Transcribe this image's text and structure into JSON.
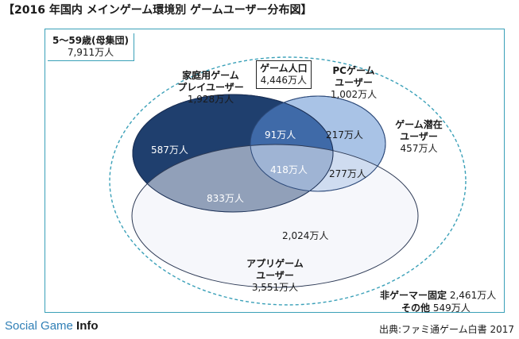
{
  "title": "【2016 年国内 メインゲーム環境別 ゲームユーザー分布図】",
  "population": {
    "label": "5～59歳(母集団)",
    "value": "7,911万人"
  },
  "game_population": {
    "label": "ゲーム人口",
    "value": "4,446万人"
  },
  "sets": {
    "console": {
      "label_line1": "家庭用ゲーム",
      "label_line2": "プレイユーザー",
      "value": "1,928万人",
      "color": "#1f3f6e"
    },
    "pc": {
      "label_line1": "PCゲーム",
      "label_line2": "ユーザー",
      "value": "1,002万人",
      "color": "#a9c3e6"
    },
    "app": {
      "label_line1": "アプリゲーム",
      "label_line2": "ユーザー",
      "value": "3,551万人",
      "color": "#eef1f7"
    },
    "latent": {
      "label_line1": "ゲーム潜在",
      "label_line2": "ユーザー",
      "value": "457万人"
    }
  },
  "regions": {
    "console_only": "587万人",
    "console_pc": "91万人",
    "pc_only": "217万人",
    "all_three": "418万人",
    "pc_app": "277万人",
    "console_app": "833万人",
    "app_only": "2,024万人"
  },
  "non_gamer": {
    "fixed_label": "非ゲーマー固定",
    "fixed_value": "2,461万人",
    "other_label": "その他",
    "other_value": "549万人"
  },
  "brand": {
    "part1": "Social",
    "part2": " Game ",
    "part3": "Info"
  },
  "source": "出典:ファミ通ゲーム白書 2017"
}
